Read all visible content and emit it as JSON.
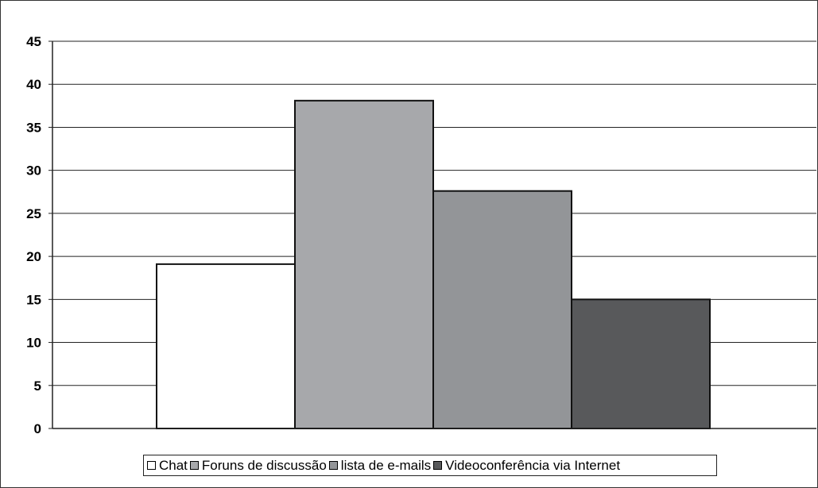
{
  "chart_data": {
    "type": "bar",
    "title": "",
    "xlabel": "",
    "ylabel": "",
    "ylim": [
      0,
      45
    ],
    "yticks": [
      "0",
      "5",
      "10",
      "15",
      "20",
      "25",
      "30",
      "35",
      "40",
      "45"
    ],
    "grid": true,
    "legend_position": "bottom",
    "series": [
      {
        "name": "Chat",
        "value": 19.1,
        "color": "#ffffff"
      },
      {
        "name": "Foruns de discussão",
        "value": 38.1,
        "color": "#a7a8ab"
      },
      {
        "name": "lista de e-mails",
        "value": 27.6,
        "color": "#939598"
      },
      {
        "name": "Videoconferência via Internet",
        "value": 15.0,
        "color": "#58595b"
      }
    ]
  }
}
